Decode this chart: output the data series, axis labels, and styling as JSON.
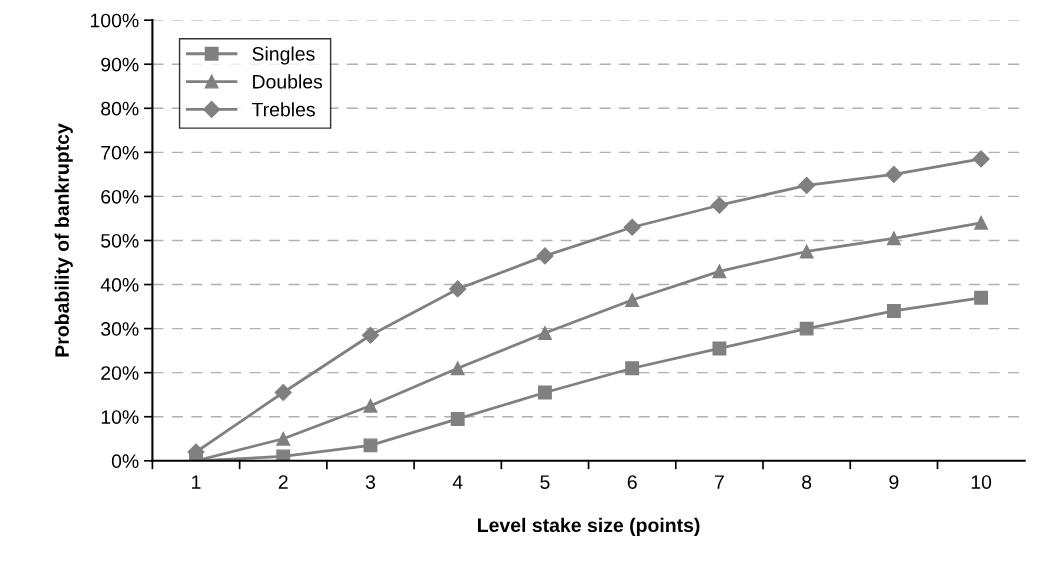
{
  "chart_data": {
    "type": "line",
    "xlabel": "Level stake size (points)",
    "ylabel": "Probability of bankruptcy",
    "categories": [
      "1",
      "2",
      "3",
      "4",
      "5",
      "6",
      "7",
      "8",
      "9",
      "10"
    ],
    "series": [
      {
        "name": "Singles",
        "color": "#808080",
        "marker": "square",
        "values": [
          0,
          1,
          3.5,
          9.5,
          15.5,
          21,
          25.5,
          30,
          34,
          37
        ]
      },
      {
        "name": "Doubles",
        "color": "#808080",
        "marker": "triangle",
        "values": [
          0,
          5,
          12.5,
          21,
          29,
          36.5,
          43,
          47.5,
          50.5,
          54
        ]
      },
      {
        "name": "Trebles",
        "color": "#808080",
        "marker": "diamond",
        "values": [
          2,
          15.5,
          28.5,
          39,
          46.5,
          53,
          58,
          62.5,
          65,
          68.5
        ]
      }
    ],
    "ylim": [
      0,
      100
    ],
    "yticks": [
      {
        "value": 0,
        "label": "0%"
      },
      {
        "value": 10,
        "label": "10%"
      },
      {
        "value": 20,
        "label": "20%"
      },
      {
        "value": 30,
        "label": "30%"
      },
      {
        "value": 40,
        "label": "40%"
      },
      {
        "value": 50,
        "label": "50%"
      },
      {
        "value": 60,
        "label": "60%"
      },
      {
        "value": 70,
        "label": "70%"
      },
      {
        "value": 80,
        "label": "80%"
      },
      {
        "value": 90,
        "label": "90%"
      },
      {
        "value": 100,
        "label": "100%"
      }
    ],
    "grid": "y",
    "legend": "top left",
    "line_style": "solid"
  }
}
